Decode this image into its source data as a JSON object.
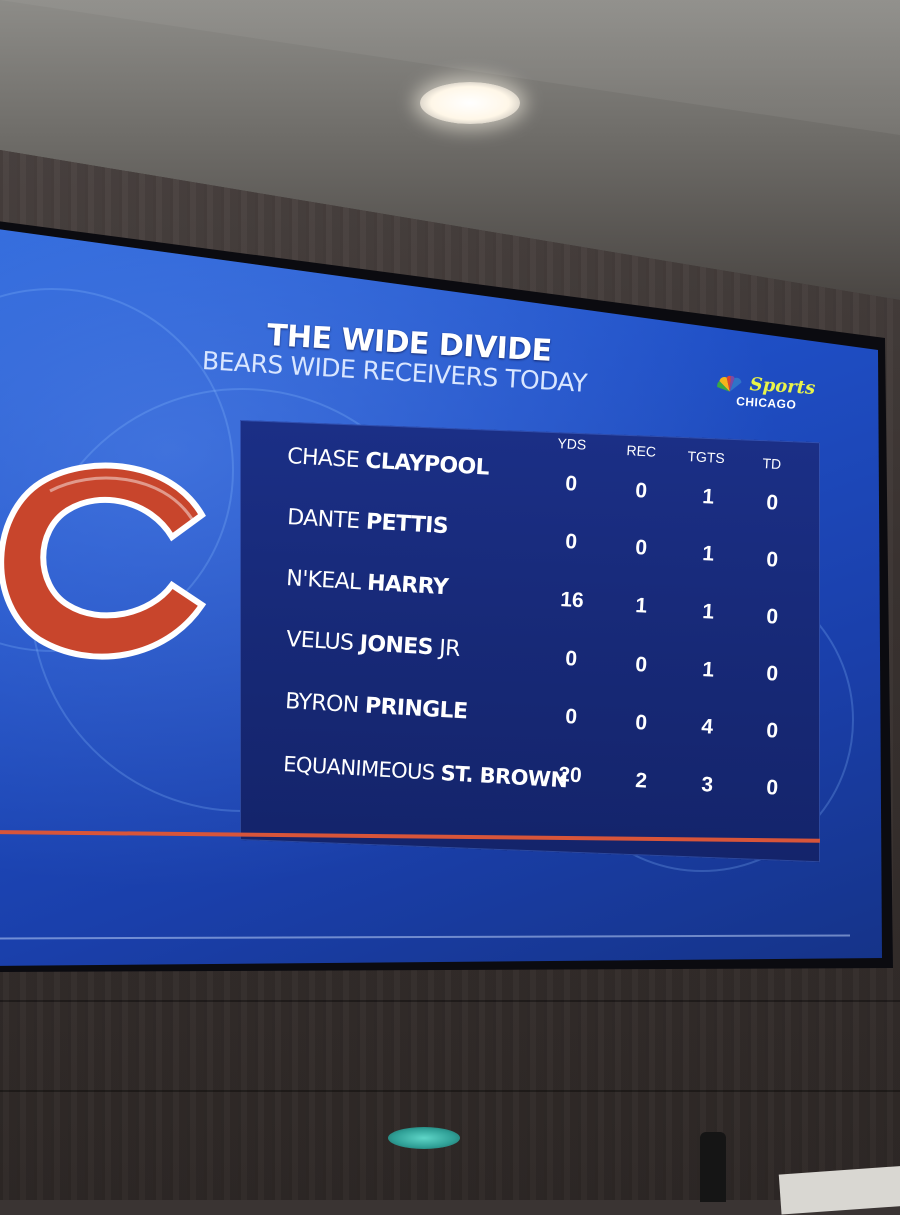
{
  "graphic": {
    "title": "THE WIDE DIVIDE",
    "subtitle": "BEARS WIDE RECEIVERS TODAY",
    "brand": {
      "sports": "Sports",
      "city": "CHICAGO"
    },
    "columns": [
      "YDS",
      "REC",
      "TGTS",
      "TD"
    ],
    "players": [
      {
        "first": "CHASE",
        "last": "CLAYPOOL",
        "suffix": "",
        "yds": "0",
        "rec": "0",
        "tgts": "1",
        "td": "0"
      },
      {
        "first": "DANTE",
        "last": "PETTIS",
        "suffix": "",
        "yds": "0",
        "rec": "0",
        "tgts": "1",
        "td": "0"
      },
      {
        "first": "N'KEAL",
        "last": "HARRY",
        "suffix": "",
        "yds": "16",
        "rec": "1",
        "tgts": "1",
        "td": "0"
      },
      {
        "first": "VELUS",
        "last": "JONES",
        "suffix": "JR",
        "yds": "0",
        "rec": "0",
        "tgts": "1",
        "td": "0"
      },
      {
        "first": "BYRON",
        "last": "PRINGLE",
        "suffix": "",
        "yds": "0",
        "rec": "0",
        "tgts": "4",
        "td": "0"
      },
      {
        "first": "EQUANIMEOUS",
        "last": "ST. BROWN",
        "suffix": "",
        "yds": "20",
        "rec": "2",
        "tgts": "3",
        "td": "0"
      }
    ],
    "colors": {
      "screen_blue": "#1f4fc6",
      "panel_navy": "#172977",
      "bears_orange": "#c8452c",
      "brand_yellow": "#e8f34a"
    },
    "icons": [
      "bears-c-logo",
      "peacock-logo"
    ]
  }
}
